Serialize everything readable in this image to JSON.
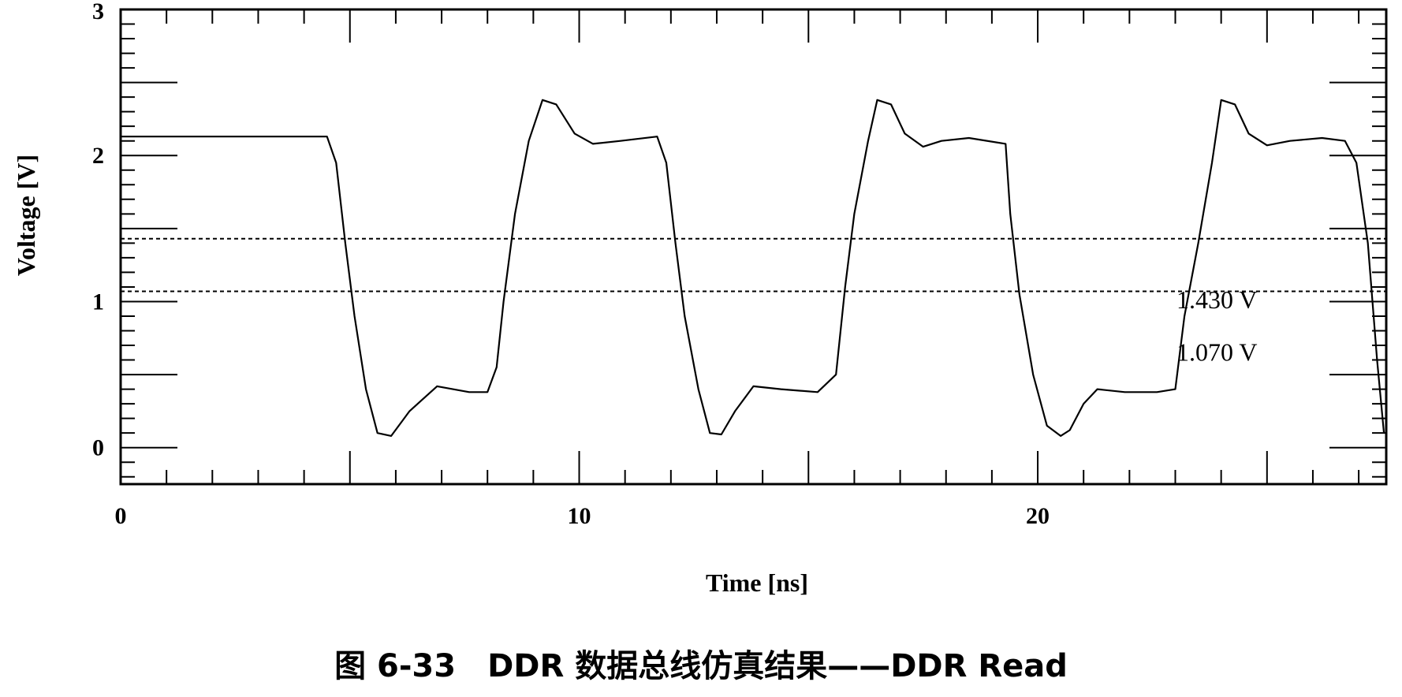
{
  "chart_data": {
    "type": "line",
    "title": "",
    "xlabel": "Time [ns]",
    "ylabel": "Voltage [V]",
    "xlim": [
      0,
      27.6
    ],
    "ylim": [
      -0.25,
      3
    ],
    "x_ticks": [
      0,
      10,
      20
    ],
    "y_ticks": [
      0,
      1,
      2,
      3
    ],
    "x_tick_labels": [
      "0",
      "10",
      "20"
    ],
    "y_tick_labels": [
      "0",
      "1",
      "2",
      "3"
    ],
    "grid": false,
    "series": [
      {
        "x": [
          0,
          4.5,
          4.7,
          4.9,
          5.1,
          5.35,
          5.6,
          5.9,
          6.3,
          6.9,
          7.6,
          8.0,
          8.2,
          8.35,
          8.6,
          8.9,
          9.2,
          9.5,
          9.9,
          10.3,
          10.9,
          11.7,
          11.9,
          12.1,
          12.3,
          12.6,
          12.85,
          13.1,
          13.4,
          13.8,
          14.4,
          15.2,
          15.6,
          15.8,
          16.0,
          16.3,
          16.5,
          16.8,
          17.1,
          17.5,
          17.9,
          18.5,
          19.3,
          19.4,
          19.6,
          19.9,
          20.2,
          20.5,
          20.7,
          21.0,
          21.3,
          21.9,
          22.6,
          23.0,
          23.2,
          23.5,
          23.8,
          24.0,
          24.3,
          24.6,
          25.0,
          25.5,
          26.2,
          26.7,
          26.95,
          27.2,
          27.4,
          27.55
        ],
        "y": [
          2.13,
          2.13,
          1.95,
          1.4,
          0.9,
          0.4,
          0.1,
          0.08,
          0.25,
          0.42,
          0.38,
          0.38,
          0.55,
          1.0,
          1.6,
          2.1,
          2.38,
          2.35,
          2.15,
          2.08,
          2.1,
          2.13,
          1.95,
          1.4,
          0.9,
          0.4,
          0.1,
          0.09,
          0.25,
          0.42,
          0.4,
          0.38,
          0.5,
          1.1,
          1.6,
          2.1,
          2.38,
          2.35,
          2.15,
          2.06,
          2.1,
          2.12,
          2.08,
          1.6,
          1.05,
          0.5,
          0.15,
          0.08,
          0.12,
          0.3,
          0.4,
          0.38,
          0.38,
          0.4,
          0.9,
          1.4,
          1.95,
          2.38,
          2.35,
          2.15,
          2.07,
          2.1,
          2.12,
          2.1,
          1.95,
          1.4,
          0.6,
          0.1
        ]
      }
    ],
    "threshold_lines": [
      {
        "label": "1.430 V",
        "y": 1.43
      },
      {
        "label": "1.070 V",
        "y": 1.07
      }
    ]
  },
  "caption": "图 6-33　DDR 数据总线仿真结果——DDR Read",
  "colors": {
    "line": "#000000",
    "background": "#ffffff"
  }
}
